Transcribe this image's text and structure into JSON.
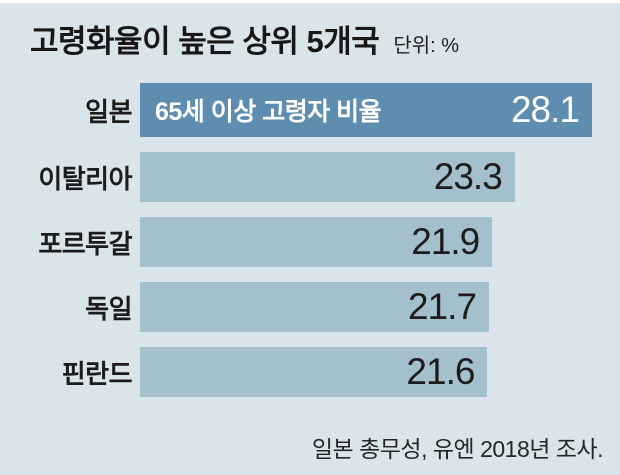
{
  "header": {
    "title": "고령화율이 높은 상위 5개국",
    "unit_label": "단위: %"
  },
  "footer": {
    "source": "일본 총무성, 유엔 2018년 조사."
  },
  "chart_data": {
    "type": "bar",
    "orientation": "horizontal",
    "title": "고령화율이 높은 상위 5개국",
    "unit": "%",
    "categories": [
      "일본",
      "이탈리아",
      "포르투갈",
      "독일",
      "핀란드"
    ],
    "values": [
      28.1,
      23.3,
      21.9,
      21.7,
      21.6
    ],
    "value_labels": [
      "28.1",
      "23.3",
      "21.9",
      "21.7",
      "21.6"
    ],
    "xlim": [
      0,
      28.1
    ],
    "grid": false,
    "legend": false,
    "highlight_index": 0,
    "highlight_inline_label": "65세 이상 고령자 비율",
    "source": "일본 총무성, 유엔 2018년 조사.",
    "colors": {
      "background": "#dae5eb",
      "bar": "#a4c0cd",
      "highlight_bar": "#5e8db0",
      "value_text": "#1c1c1c",
      "highlight_value_text": "#ffffff",
      "title_text": "#181818"
    }
  }
}
